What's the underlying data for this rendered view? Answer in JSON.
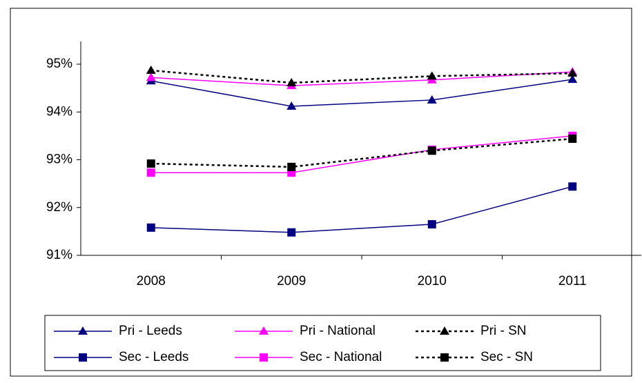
{
  "chart_data": {
    "type": "line",
    "categories": [
      "2008",
      "2009",
      "2010",
      "2011"
    ],
    "series": [
      {
        "name": "Pri - Leeds",
        "color": "#000080",
        "marker": "triangle",
        "dashed": false,
        "values": [
          94.65,
          94.12,
          94.25,
          94.68
        ]
      },
      {
        "name": "Pri - National",
        "color": "#ff00ff",
        "marker": "triangle",
        "dashed": false,
        "values": [
          94.72,
          94.55,
          94.67,
          94.84
        ]
      },
      {
        "name": "Pri - SN",
        "color": "#000000",
        "marker": "triangle",
        "dashed": true,
        "values": [
          94.87,
          94.61,
          94.75,
          94.81
        ]
      },
      {
        "name": "Sec - Leeds",
        "color": "#000080",
        "marker": "square",
        "dashed": false,
        "values": [
          91.58,
          91.48,
          91.65,
          92.44
        ]
      },
      {
        "name": "Sec - National",
        "color": "#ff00ff",
        "marker": "square",
        "dashed": false,
        "values": [
          92.73,
          92.73,
          93.21,
          93.5
        ]
      },
      {
        "name": "Sec - SN",
        "color": "#000000",
        "marker": "square",
        "dashed": true,
        "values": [
          92.92,
          92.85,
          93.19,
          93.44
        ]
      }
    ],
    "ylim": [
      91,
      95
    ],
    "yticks": [
      {
        "value": 91,
        "label": "91%"
      },
      {
        "value": 92,
        "label": "92%"
      },
      {
        "value": 93,
        "label": "93%"
      },
      {
        "value": 94,
        "label": "94%"
      },
      {
        "value": 95,
        "label": "95%"
      }
    ],
    "legend": "bottom"
  }
}
